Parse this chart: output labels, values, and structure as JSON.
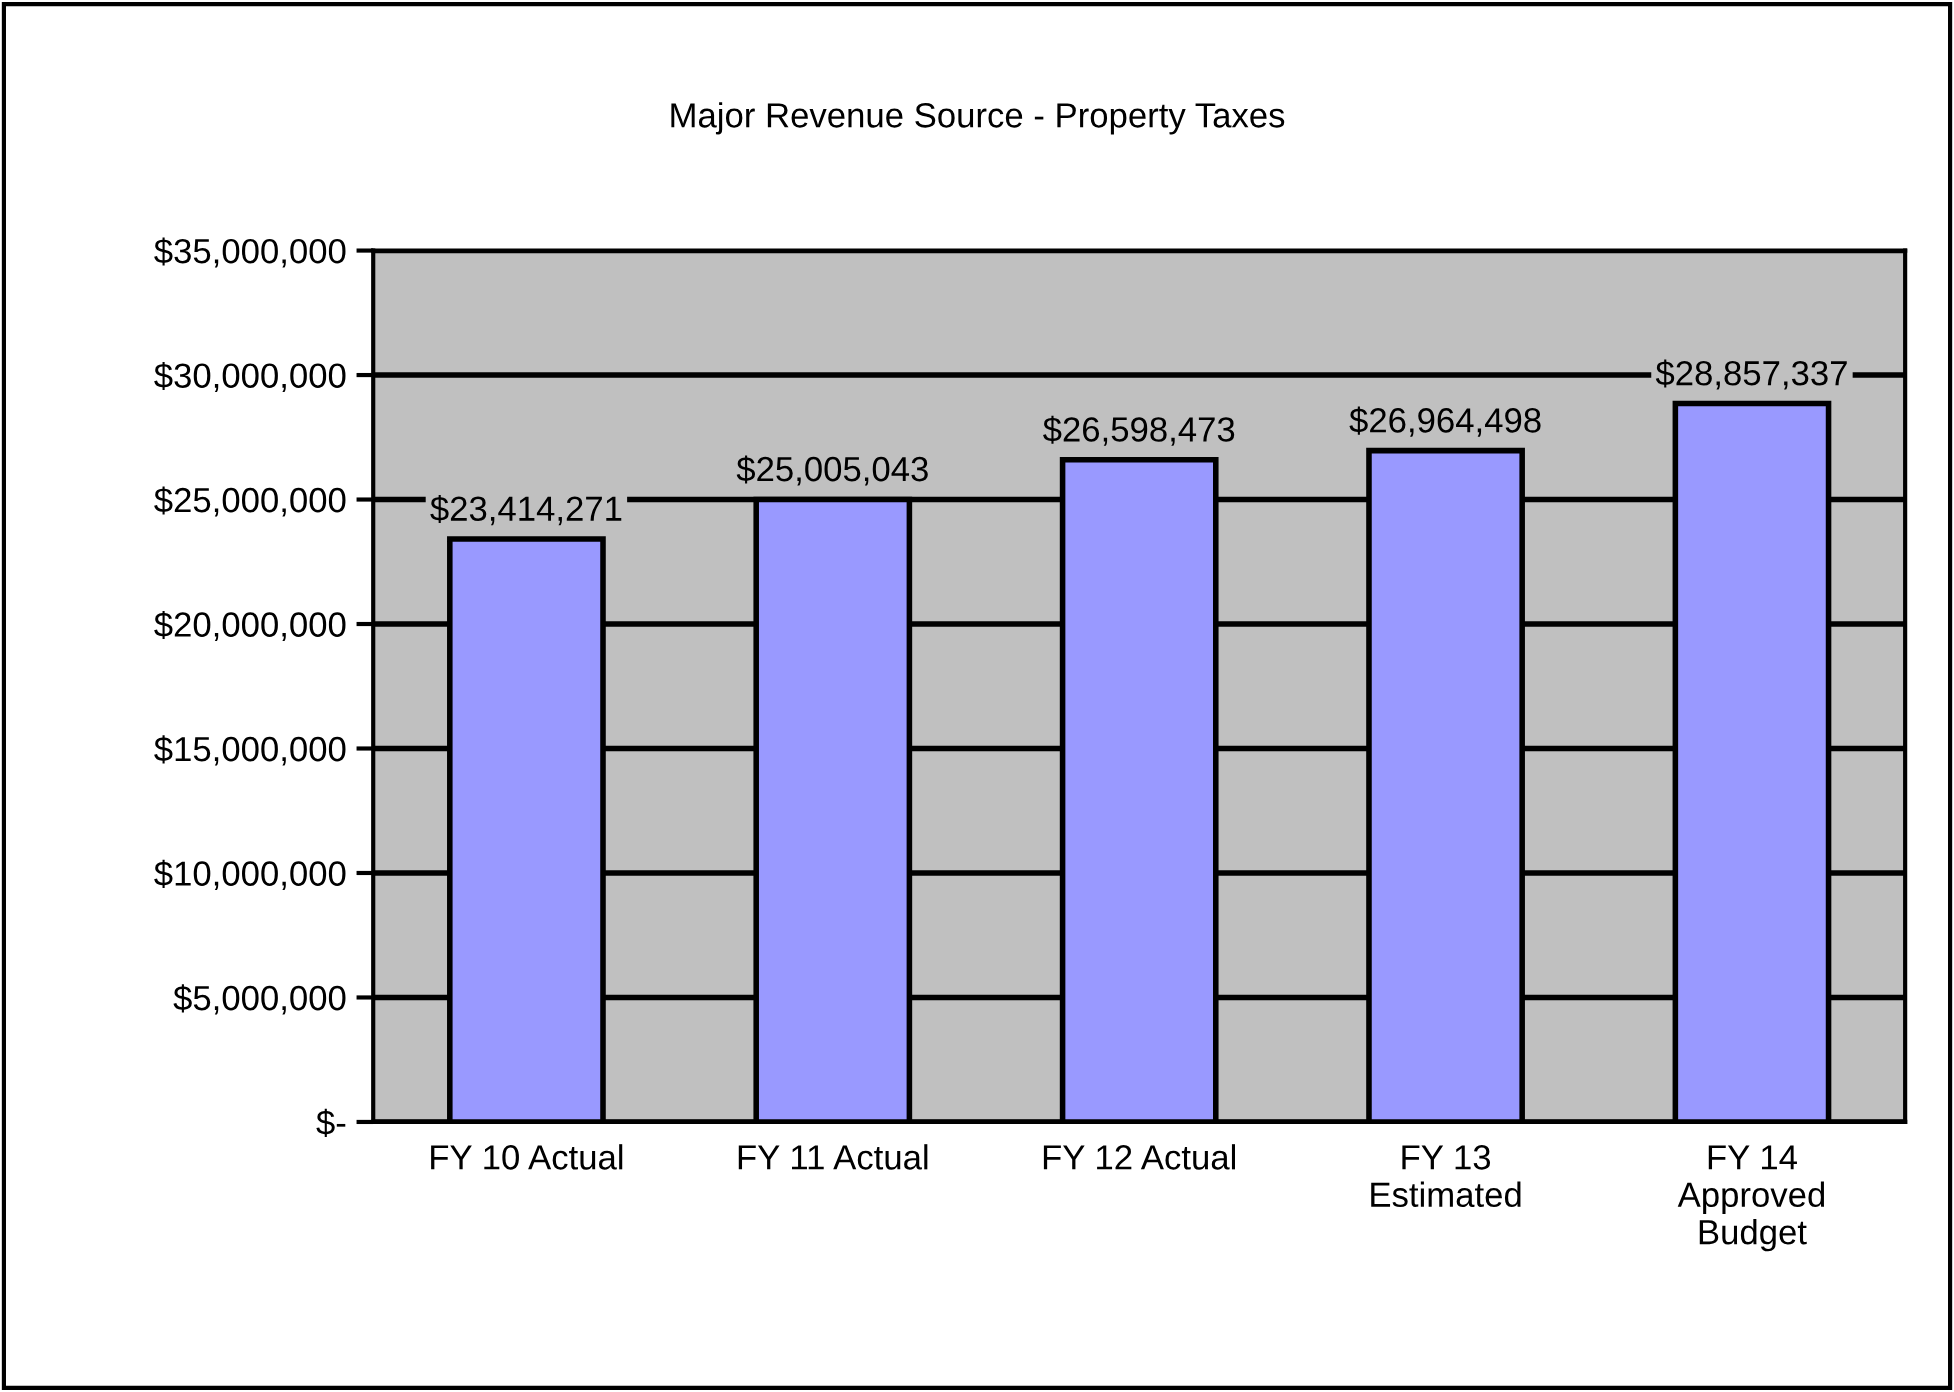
{
  "chart_data": {
    "type": "bar",
    "title": "Major Revenue Source - Property Taxes",
    "categories": [
      "FY 10 Actual",
      "FY 11 Actual",
      "FY 12 Actual",
      "FY 13\nEstimated",
      "FY 14\nApproved\nBudget"
    ],
    "values": [
      23414271,
      25005043,
      26598473,
      26964498,
      28857337
    ],
    "value_labels": [
      "$23,414,271",
      "$25,005,043",
      "$26,598,473",
      "$26,964,498",
      "$28,857,337"
    ],
    "color": "#9999ff",
    "ylim": [
      0,
      35000000
    ],
    "yticks": [
      {
        "value": 0,
        "label": "$-"
      },
      {
        "value": 5000000,
        "label": "$5,000,000"
      },
      {
        "value": 10000000,
        "label": "$10,000,000"
      },
      {
        "value": 15000000,
        "label": "$15,000,000"
      },
      {
        "value": 20000000,
        "label": "$20,000,000"
      },
      {
        "value": 25000000,
        "label": "$25,000,000"
      },
      {
        "value": 30000000,
        "label": "$30,000,000"
      },
      {
        "value": 35000000,
        "label": "$35,000,000"
      }
    ],
    "grid": "y",
    "legend": false
  }
}
